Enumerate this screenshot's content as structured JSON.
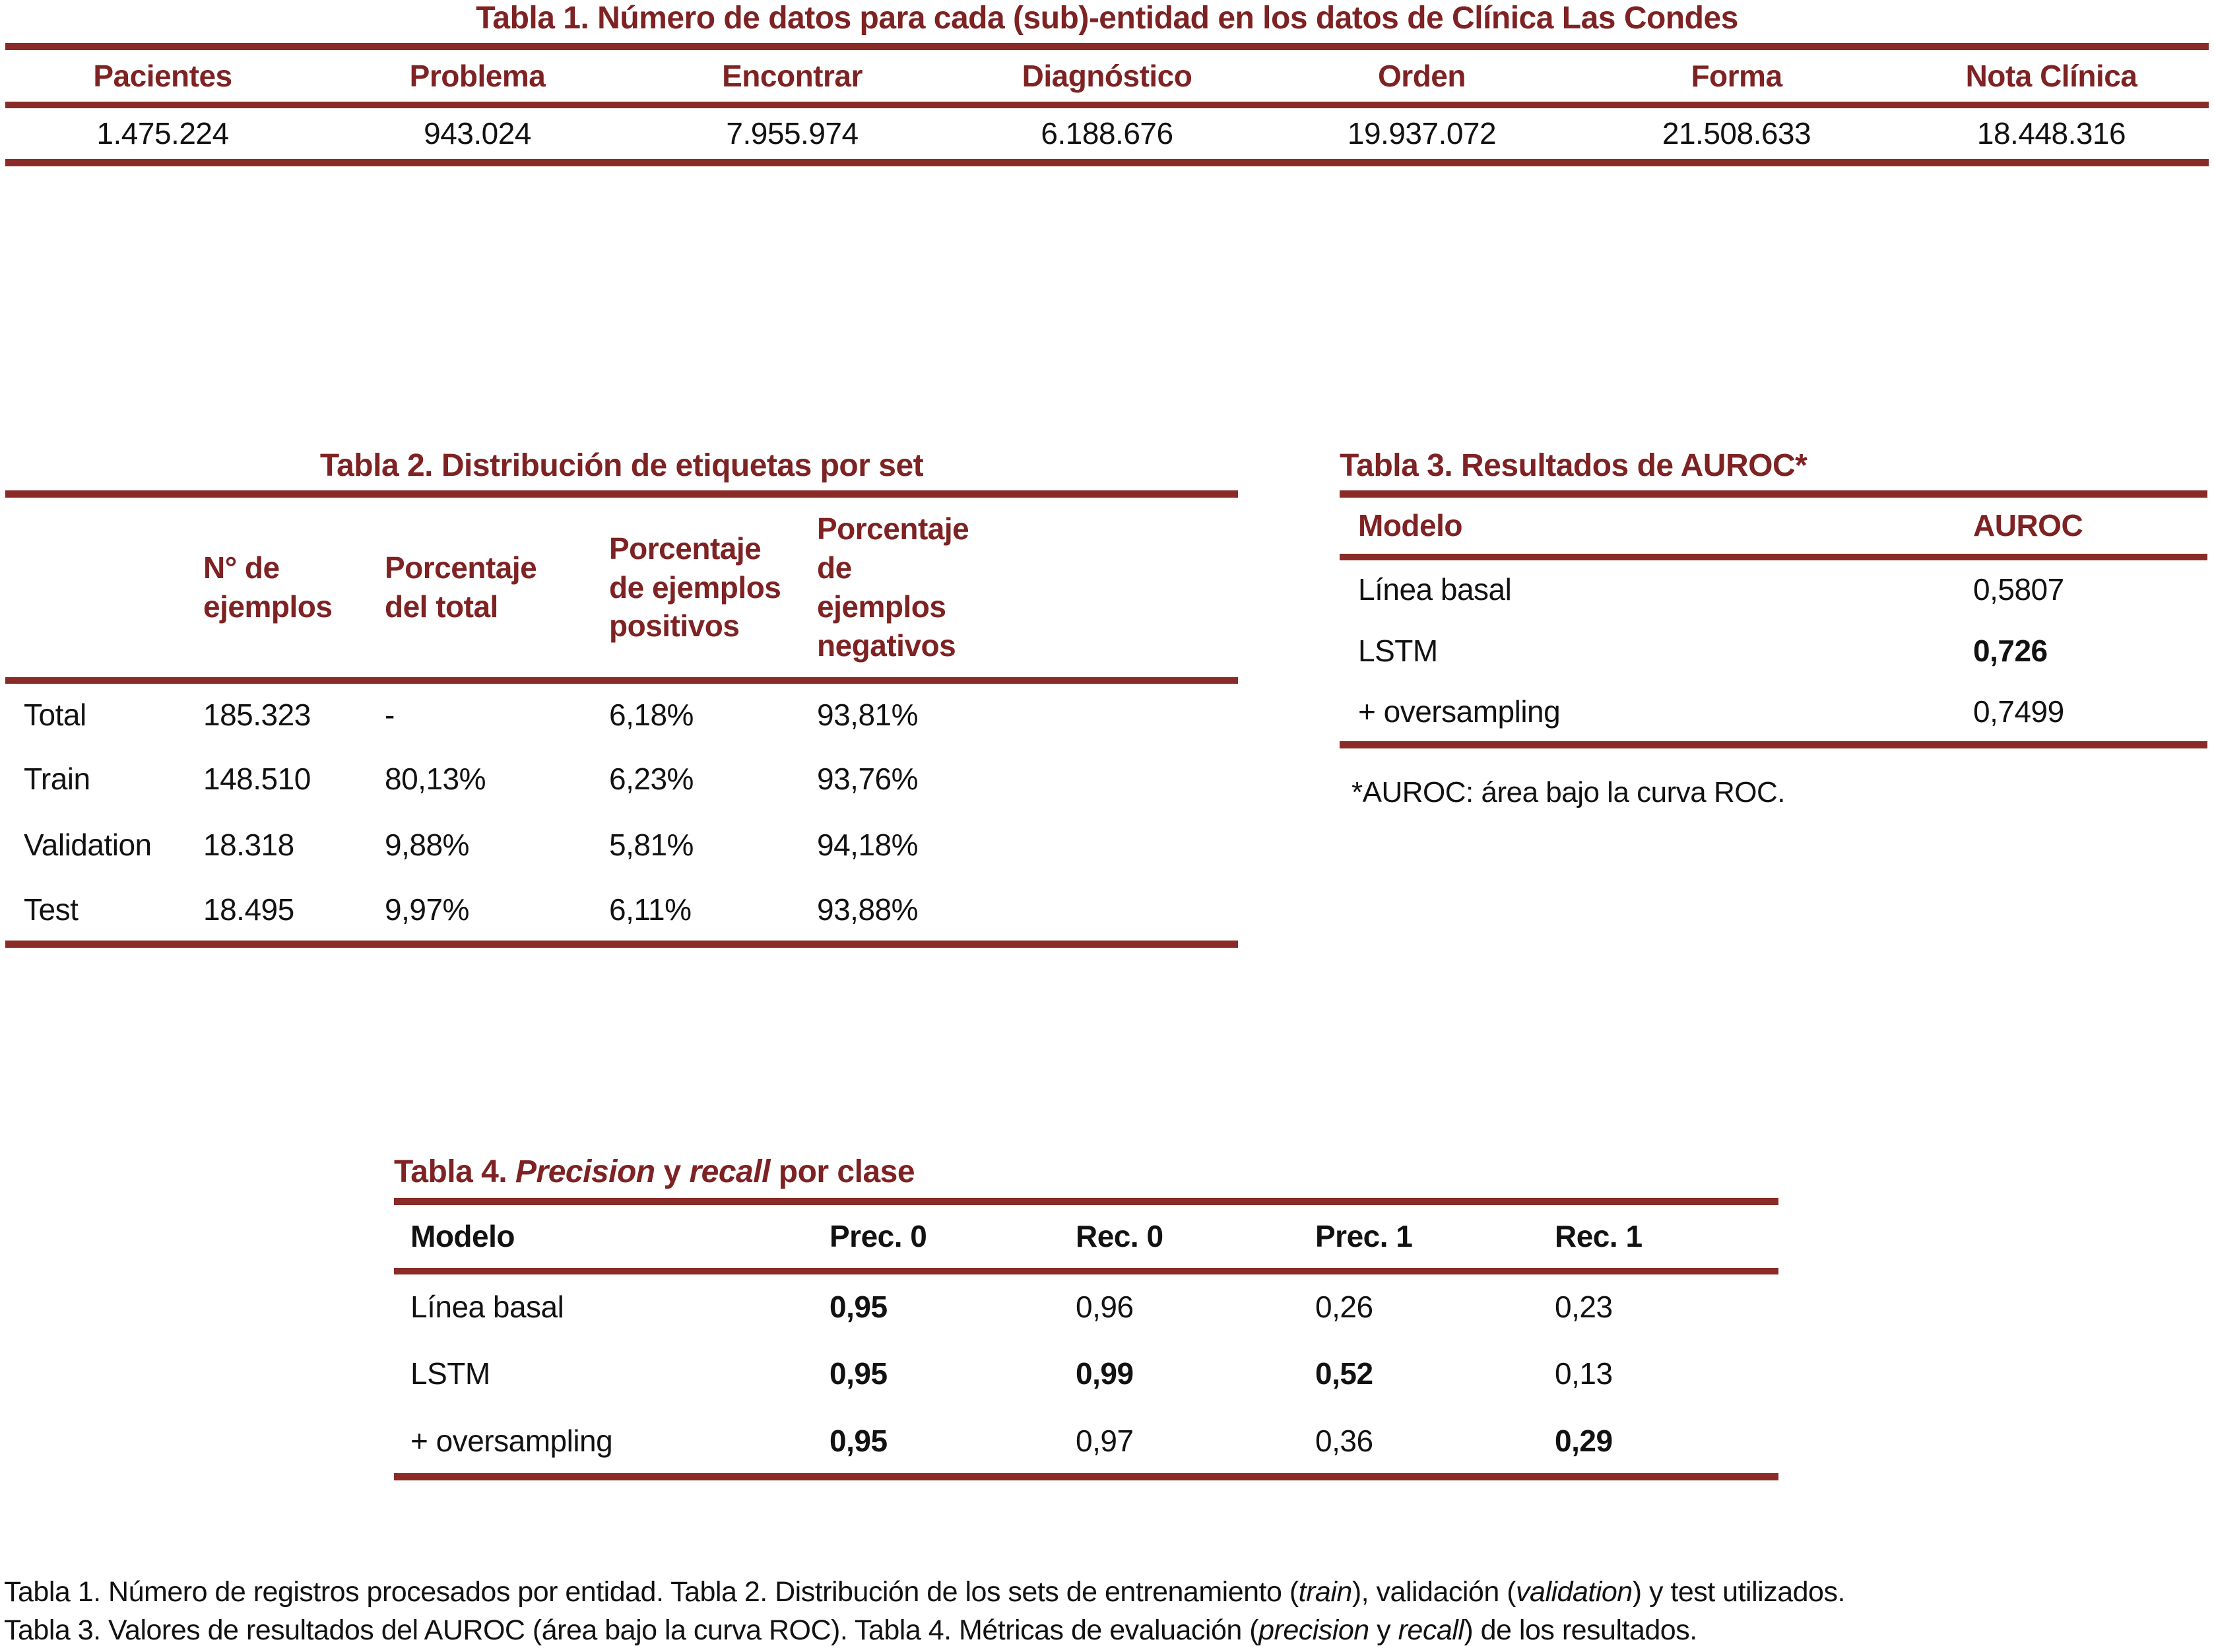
{
  "colors": {
    "heading_maroon": "#7E2223",
    "rule_maroon": "#8A2B27",
    "body_text": "#121212"
  },
  "table1": {
    "title": "Tabla 1. Número de datos para cada (sub)-entidad en los datos de Clínica Las Condes",
    "headers": [
      "Pacientes",
      "Problema",
      "Encontrar",
      "Diagnóstico",
      "Orden",
      "Forma",
      "Nota Clínica"
    ],
    "values": [
      "1.475.224",
      "943.024",
      "7.955.974",
      "6.188.676",
      "19.937.072",
      "21.508.633",
      "18.448.316"
    ]
  },
  "table2": {
    "title": "Tabla 2. Distribución de etiquetas por set",
    "headers": [
      "",
      "N° de ejemplos",
      "Porcentaje del total",
      "Porcentaje de ejemplos positivos",
      "Porcentaje de ejemplos negativos"
    ],
    "rows": [
      {
        "label": "Total",
        "values": [
          "185.323",
          "-",
          "6,18%",
          "93,81%"
        ]
      },
      {
        "label": "Train",
        "values": [
          "148.510",
          "80,13%",
          "6,23%",
          "93,76%"
        ]
      },
      {
        "label": "Validation",
        "values": [
          "18.318",
          "9,88%",
          "5,81%",
          "94,18%"
        ]
      },
      {
        "label": "Test",
        "values": [
          "18.495",
          "9,97%",
          "6,11%",
          "93,88%"
        ]
      }
    ]
  },
  "table3": {
    "title": "Tabla 3. Resultados de AUROC*",
    "headers": [
      "Modelo",
      "AUROC"
    ],
    "rows": [
      {
        "label": "Línea basal",
        "value": "0,5807"
      },
      {
        "label": "LSTM",
        "value": "0,726"
      },
      {
        "label": "+ oversampling",
        "value": "0,7499"
      }
    ],
    "footnote": "*AUROC: área bajo la curva ROC."
  },
  "table4": {
    "title_prefix": "Tabla 4. ",
    "title_italic1": "Precision",
    "title_mid": " y ",
    "title_italic2": "recall",
    "title_suffix": " por clase",
    "headers": [
      "Modelo",
      "Prec. 0",
      "Rec. 0",
      "Prec. 1",
      "Rec. 1"
    ],
    "rows": [
      {
        "label": "Línea basal",
        "values": [
          "0,95",
          "0,96",
          "0,26",
          "0,23"
        ]
      },
      {
        "label": "LSTM",
        "values": [
          "0,95",
          "0,99",
          "0,52",
          "0,13"
        ]
      },
      {
        "label": "+ oversampling",
        "values": [
          "0,95",
          "0,97",
          "0,36",
          "0,29"
        ]
      }
    ]
  },
  "caption": {
    "l1a": "Tabla 1. Número de registros procesados por entidad. Tabla 2. Distribución de los sets de entrenamiento (",
    "l1i1": "train",
    "l1b": "), validación (",
    "l1i2": "validation",
    "l1c": ") y test utilizados.",
    "l2a": "Tabla 3. Valores de resultados del AUROC (área bajo la curva ROC). Tabla 4. Métricas de evaluación (",
    "l2i1": "precision",
    "l2b": " y ",
    "l2i2": "recall",
    "l2c": ") de los resultados."
  }
}
